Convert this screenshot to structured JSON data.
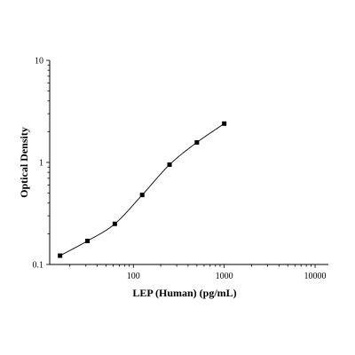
{
  "chart_data": {
    "type": "scatter",
    "title": "",
    "xlabel": "LEP (Human) (pg/mL)",
    "ylabel": "Optical Density",
    "x_scale": "log",
    "y_scale": "log",
    "xlim": [
      12,
      14000
    ],
    "ylim": [
      0.1,
      10
    ],
    "x_ticks": [
      {
        "value": 100,
        "label": "100"
      },
      {
        "value": 1000,
        "label": "1000"
      },
      {
        "value": 10000,
        "label": "10000"
      }
    ],
    "y_ticks": [
      {
        "value": 0.1,
        "label": "0.1"
      },
      {
        "value": 1,
        "label": "1"
      },
      {
        "value": 10,
        "label": "10"
      }
    ],
    "grid": false,
    "legend": "none",
    "series": [
      {
        "points": [
          {
            "x": 15.6,
            "y": 0.122
          },
          {
            "x": 31.25,
            "y": 0.17
          },
          {
            "x": 62.5,
            "y": 0.25
          },
          {
            "x": 125,
            "y": 0.48
          },
          {
            "x": 250,
            "y": 0.95
          },
          {
            "x": 500,
            "y": 1.57
          },
          {
            "x": 1000,
            "y": 2.4
          }
        ],
        "fit_curve": true,
        "color": "#000000"
      }
    ]
  }
}
